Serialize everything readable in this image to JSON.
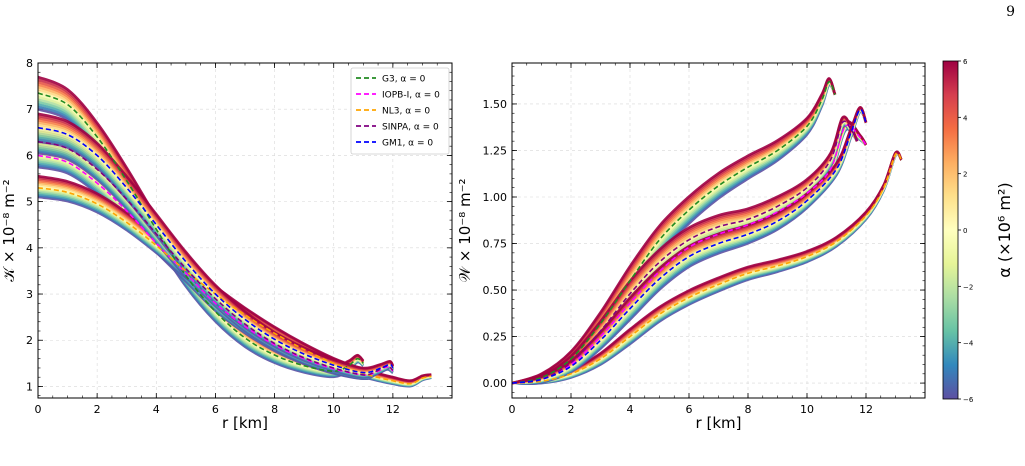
{
  "page_number": "9",
  "colorbar": {
    "label": "α (×10⁶ m²)",
    "ticks": [
      "6",
      "4",
      "2",
      "0",
      "−2",
      "−4",
      "−6"
    ],
    "range": [
      -6,
      6
    ],
    "colors": [
      "#9e0142",
      "#d53e4f",
      "#f46d43",
      "#fdae61",
      "#fee08b",
      "#ffffbf",
      "#e6f598",
      "#abdda4",
      "#66c2a5",
      "#3288bd",
      "#5e4fa2"
    ]
  },
  "chart_data": [
    {
      "type": "line",
      "xlabel": "r [km]",
      "ylabel": "𝒦 × 10⁻⁸ m⁻²",
      "xlim": [
        0,
        14
      ],
      "ylim": [
        0.75,
        8.0
      ],
      "x_ticks": [
        "0",
        "2",
        "4",
        "6",
        "8",
        "10",
        "12"
      ],
      "y_ticks": [
        "1",
        "2",
        "3",
        "4",
        "5",
        "6",
        "7",
        "8"
      ],
      "grid": true,
      "legend_position": "top-right",
      "series": [
        {
          "name": "G3, α = 0",
          "color": "#228B22",
          "dash": true,
          "x": [
            0,
            1,
            2,
            3,
            4,
            5,
            6,
            7,
            8,
            9,
            10,
            10.5,
            10.8,
            11.0
          ],
          "y": [
            7.35,
            7.1,
            6.4,
            5.45,
            4.4,
            3.4,
            2.62,
            2.05,
            1.68,
            1.45,
            1.33,
            1.45,
            1.6,
            1.5
          ],
          "band": [
            -0.35,
            0.35
          ]
        },
        {
          "name": "IOPB-I, α = 0",
          "color": "#ff00ff",
          "dash": true,
          "x": [
            0,
            1,
            2,
            3,
            4,
            5,
            6,
            7,
            8,
            9,
            10,
            11,
            11.4,
            11.8,
            12.0
          ],
          "y": [
            6.0,
            5.85,
            5.4,
            4.8,
            4.1,
            3.45,
            2.8,
            2.3,
            1.9,
            1.6,
            1.38,
            1.25,
            1.3,
            1.42,
            1.33
          ],
          "band": [
            -0.25,
            0.3
          ]
        },
        {
          "name": "NL3, α = 0",
          "color": "#ffa500",
          "dash": true,
          "x": [
            0,
            1,
            2,
            3,
            4,
            5,
            6,
            7,
            8,
            9,
            10,
            11,
            12,
            12.6,
            13.0,
            13.3
          ],
          "y": [
            5.3,
            5.2,
            4.95,
            4.55,
            4.05,
            3.5,
            3.0,
            2.55,
            2.15,
            1.8,
            1.5,
            1.28,
            1.12,
            1.06,
            1.18,
            1.22
          ],
          "band": [
            -0.2,
            0.25
          ]
        },
        {
          "name": "SINPA, α = 0",
          "color": "#800080",
          "dash": true,
          "x": [
            0,
            1,
            2,
            3,
            4,
            5,
            6,
            7,
            8,
            9,
            10,
            11,
            11.4,
            11.8,
            12.0
          ],
          "y": [
            6.3,
            6.15,
            5.7,
            5.05,
            4.3,
            3.55,
            2.9,
            2.35,
            1.93,
            1.62,
            1.4,
            1.25,
            1.32,
            1.44,
            1.35
          ],
          "band": [
            -0.25,
            0.3
          ]
        },
        {
          "name": "GM1, α = 0",
          "color": "#0000ff",
          "dash": true,
          "x": [
            0,
            1,
            2,
            3,
            4,
            5,
            6,
            7,
            8,
            9,
            10,
            11,
            11.6,
            11.9,
            12.0
          ],
          "y": [
            6.6,
            6.45,
            6.0,
            5.3,
            4.5,
            3.7,
            3.0,
            2.45,
            2.02,
            1.7,
            1.46,
            1.3,
            1.4,
            1.48,
            1.4
          ],
          "band": [
            -0.3,
            0.3
          ]
        }
      ]
    },
    {
      "type": "line",
      "xlabel": "r [km]",
      "ylabel": "𝒲 × 10⁻⁸ m⁻²",
      "xlim": [
        0,
        14
      ],
      "ylim": [
        -0.08,
        1.72
      ],
      "x_ticks": [
        "0",
        "2",
        "4",
        "6",
        "8",
        "10",
        "12"
      ],
      "y_ticks": [
        "0.00",
        "0.25",
        "0.50",
        "0.75",
        "1.00",
        "1.25",
        "1.50"
      ],
      "grid": true,
      "legend_position": "none",
      "series": [
        {
          "name": "G3, α = 0",
          "color": "#228B22",
          "dash": true,
          "x": [
            0,
            1,
            2,
            3,
            4,
            5,
            6,
            7,
            8,
            9,
            10,
            10.5,
            10.75,
            10.95
          ],
          "y": [
            0,
            0.03,
            0.13,
            0.32,
            0.55,
            0.77,
            0.93,
            1.06,
            1.16,
            1.25,
            1.38,
            1.52,
            1.62,
            1.55
          ],
          "band": [
            -0.08,
            0.08
          ]
        },
        {
          "name": "IOPB-I, α = 0",
          "color": "#ff00ff",
          "dash": true,
          "x": [
            0,
            1,
            2,
            3,
            4,
            5,
            6,
            7,
            8,
            9,
            10,
            10.8,
            11.3,
            11.8,
            12.0
          ],
          "y": [
            0,
            0.02,
            0.1,
            0.25,
            0.43,
            0.6,
            0.73,
            0.8,
            0.85,
            0.92,
            1.02,
            1.15,
            1.38,
            1.32,
            1.28
          ],
          "band": [
            -0.06,
            0.06
          ]
        },
        {
          "name": "NL3, α = 0",
          "color": "#ffa500",
          "dash": true,
          "x": [
            0,
            1,
            2,
            3,
            4,
            5,
            6,
            7,
            8,
            9,
            10,
            11,
            12,
            12.6,
            13.0,
            13.2
          ],
          "y": [
            0,
            0.01,
            0.05,
            0.13,
            0.25,
            0.37,
            0.46,
            0.53,
            0.59,
            0.63,
            0.68,
            0.76,
            0.9,
            1.05,
            1.23,
            1.2
          ],
          "band": [
            -0.04,
            0.04
          ]
        },
        {
          "name": "SINPA, α = 0",
          "color": "#800080",
          "dash": true,
          "x": [
            0,
            1,
            2,
            3,
            4,
            5,
            6,
            7,
            8,
            9,
            10,
            10.8,
            11.2,
            11.5,
            11.7
          ],
          "y": [
            0,
            0.02,
            0.11,
            0.28,
            0.48,
            0.65,
            0.77,
            0.84,
            0.88,
            0.95,
            1.05,
            1.2,
            1.4,
            1.36,
            1.3
          ],
          "band": [
            -0.07,
            0.07
          ]
        },
        {
          "name": "GM1, α = 0",
          "color": "#0000ff",
          "dash": true,
          "x": [
            0,
            1,
            2,
            3,
            4,
            5,
            6,
            7,
            8,
            9,
            10,
            11,
            11.5,
            11.8,
            12.0
          ],
          "y": [
            0,
            0.02,
            0.09,
            0.23,
            0.4,
            0.56,
            0.68,
            0.75,
            0.8,
            0.87,
            0.98,
            1.15,
            1.35,
            1.47,
            1.4
          ],
          "band": [
            -0.06,
            0.06
          ]
        }
      ]
    }
  ]
}
